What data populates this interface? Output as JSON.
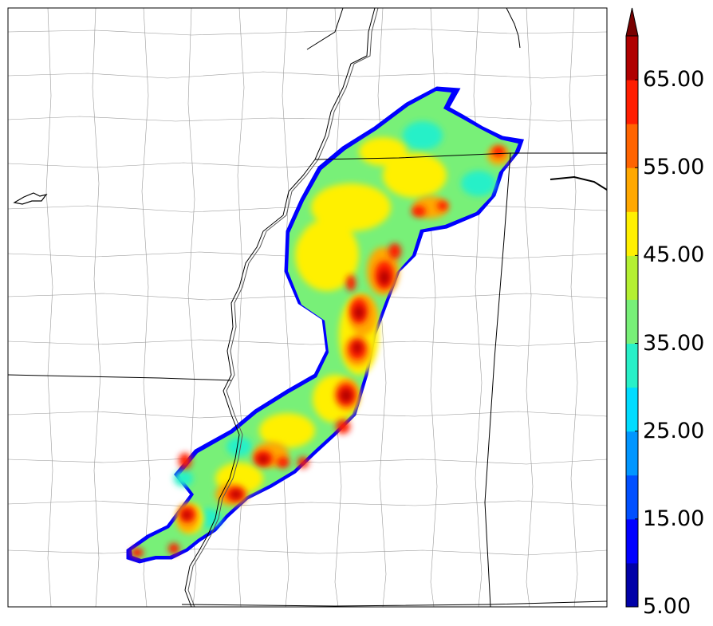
{
  "colorbar": {
    "min": 5,
    "max": 70,
    "step": 5,
    "extend": "max",
    "levels": [
      5,
      10,
      15,
      20,
      25,
      30,
      35,
      40,
      45,
      50,
      55,
      60,
      65,
      70
    ],
    "colors": [
      "#0000a8",
      "#0000ff",
      "#0050ff",
      "#0096ff",
      "#00dcff",
      "#28f0c8",
      "#78f078",
      "#b4f032",
      "#fff000",
      "#ffa800",
      "#ff6400",
      "#ff1e00",
      "#b00000"
    ],
    "extend_color": "#780000",
    "tick_values": [
      5,
      15,
      25,
      35,
      45,
      55,
      65
    ],
    "tick_labels": [
      "5.00",
      "15.00",
      "25.00",
      "35.00",
      "45.00",
      "55.00",
      "65.00"
    ]
  },
  "map": {
    "boundary_color": "#000000",
    "county_color": "#9a9a9a",
    "background": "#ffffff"
  }
}
